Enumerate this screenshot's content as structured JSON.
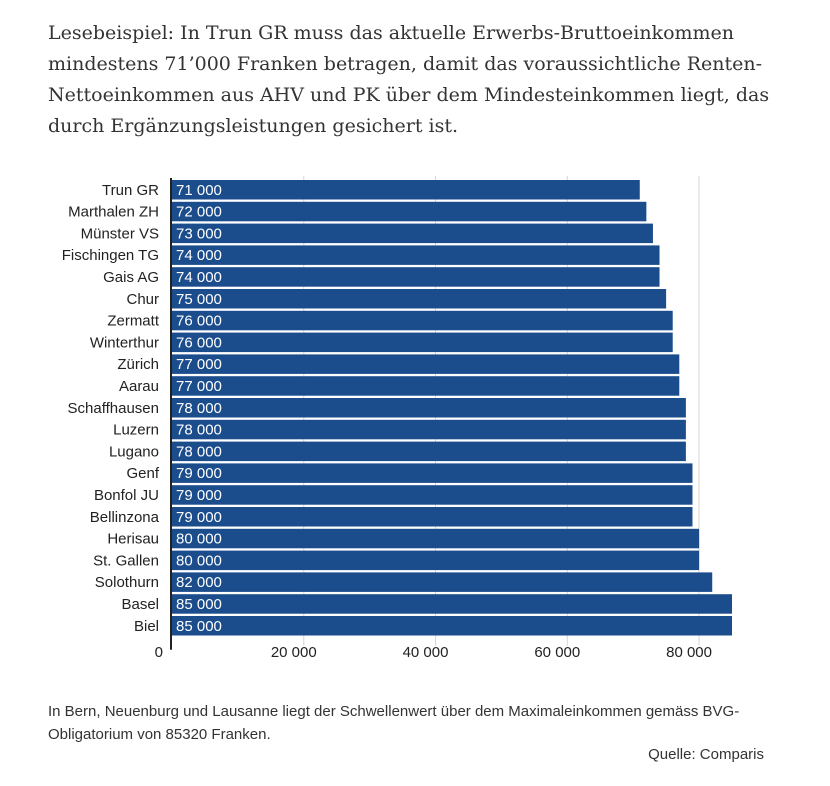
{
  "intro_text": "Lesebeispiel: In Trun GR muss das aktuelle Erwerbs-Bruttoeinkommen mindestens 71’000 Franken betragen, damit das voraussichtliche Renten-Nettoeinkommen aus AHV und PK über dem Mindesteinkommen liegt, das durch Ergänzungsleistungen gesichert ist.",
  "footnote": "In Bern, Neuenburg und Lausanne liegt der Schwellenwert über dem Maximaleinkommen gemäss BVG-Obligatorium von 85320 Franken.",
  "source": "Quelle: Comparis",
  "colors": {
    "bar": "#1b4c8c",
    "grid": "#d6d6d6",
    "axis": "#222222"
  },
  "chart_data": {
    "type": "bar",
    "orientation": "horizontal",
    "categories": [
      "Trun GR",
      "Marthalen ZH",
      "Münster VS",
      "Fischingen TG",
      "Gais AG",
      "Chur",
      "Zermatt",
      "Winterthur",
      "Zürich",
      "Aarau",
      "Schaffhausen",
      "Luzern",
      "Lugano",
      "Genf",
      "Bonfol JU",
      "Bellinzona",
      "Herisau",
      "St. Gallen",
      "Solothurn",
      "Basel",
      "Biel"
    ],
    "values": [
      71000,
      72000,
      73000,
      74000,
      74000,
      75000,
      76000,
      76000,
      77000,
      77000,
      78000,
      78000,
      78000,
      79000,
      79000,
      79000,
      80000,
      80000,
      82000,
      85000,
      85000
    ],
    "value_labels": [
      "71 000",
      "72 000",
      "73 000",
      "74 000",
      "74 000",
      "75 000",
      "76 000",
      "76 000",
      "77 000",
      "77 000",
      "78 000",
      "78 000",
      "78 000",
      "79 000",
      "79 000",
      "79 000",
      "80 000",
      "80 000",
      "82 000",
      "85 000",
      "85 000"
    ],
    "xlim": [
      0,
      85000
    ],
    "xticks": [
      0,
      20000,
      40000,
      60000,
      80000
    ],
    "xtick_labels": [
      "0",
      "20 000",
      "40 000",
      "60 000",
      "80 000"
    ],
    "grid": true,
    "title": "",
    "xlabel": "",
    "ylabel": ""
  }
}
